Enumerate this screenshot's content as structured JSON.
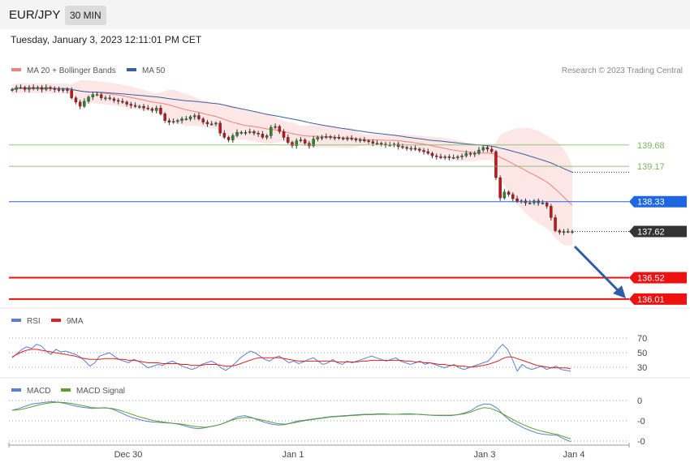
{
  "header": {
    "pair": "EUR/JPY",
    "timeframe": "30 MIN",
    "datetime": "Tuesday, January 3, 2023 12:11:01 PM CET"
  },
  "colors": {
    "ma20": "#f08080",
    "ma50": "#3a5f9e",
    "band": "#fbdede",
    "bull": "#2a8a2a",
    "bear": "#cc1111",
    "resistance": "#7ab55c",
    "pivot": "#1f66e0",
    "current": "#333333",
    "support": "#ee1111",
    "rsi": "#5a7fd8",
    "rsi_ma": "#dd2222",
    "macd": "#5a7fd8",
    "macd_signal": "#5aa02c",
    "arrow": "#2f5fa3"
  },
  "chart_data": [
    {
      "type": "candlestick",
      "legend": [
        {
          "label": "MA 20 + Bollinger Bands"
        },
        {
          "label": "MA 50"
        }
      ],
      "credit": "Research © 2023 Trading Central",
      "ylim": [
        135.95,
        141.2
      ],
      "x_ticks": [
        "Dec 30",
        "Jan 1",
        "Jan 3",
        "Jan 4"
      ],
      "close": [
        141.0,
        141.05,
        141.05,
        141.0,
        141.05,
        141.02,
        141.05,
        141.0,
        141.05,
        141.02,
        141.0,
        140.98,
        141.0,
        140.98,
        140.8,
        140.7,
        140.6,
        140.72,
        140.82,
        140.88,
        140.88,
        140.8,
        140.8,
        140.78,
        140.74,
        140.72,
        140.7,
        140.65,
        140.62,
        140.6,
        140.6,
        140.56,
        140.54,
        140.5,
        140.56,
        140.42,
        140.26,
        140.22,
        140.24,
        140.26,
        140.3,
        140.3,
        140.35,
        140.38,
        140.3,
        140.22,
        140.18,
        140.18,
        140.2,
        139.96,
        139.86,
        139.8,
        139.9,
        139.98,
        139.98,
        139.98,
        140.0,
        139.96,
        139.94,
        139.86,
        139.9,
        140.1,
        140.12,
        140.0,
        139.86,
        139.74,
        139.66,
        139.78,
        139.8,
        139.72,
        139.66,
        139.82,
        139.86,
        139.86,
        139.88,
        139.86,
        139.86,
        139.84,
        139.84,
        139.84,
        139.82,
        139.8,
        139.8,
        139.78,
        139.76,
        139.72,
        139.72,
        139.7,
        139.68,
        139.68,
        139.7,
        139.64,
        139.62,
        139.6,
        139.6,
        139.58,
        139.55,
        139.52,
        139.48,
        139.42,
        139.4,
        139.38,
        139.4,
        139.38,
        139.38,
        139.4,
        139.42,
        139.48,
        139.46,
        139.48,
        139.56,
        139.62,
        139.58,
        139.52,
        138.9,
        138.42,
        138.56,
        138.5,
        138.4,
        138.34,
        138.35,
        138.3,
        138.3,
        138.35,
        138.3,
        138.3,
        138.22,
        137.95,
        137.64,
        137.6,
        137.62,
        137.62,
        137.62
      ],
      "levels": [
        {
          "label": "139.68",
          "value": 139.68,
          "kind": "resistance"
        },
        {
          "label": "139.17",
          "value": 139.17,
          "kind": "resistance"
        },
        {
          "label": "138.33",
          "value": 138.33,
          "kind": "pivot"
        },
        {
          "label": "137.62",
          "value": 137.62,
          "kind": "current"
        },
        {
          "label": "136.52",
          "value": 136.52,
          "kind": "support"
        },
        {
          "label": "136.01",
          "value": 136.01,
          "kind": "support"
        }
      ]
    },
    {
      "type": "line",
      "legend": [
        {
          "label": "RSI"
        },
        {
          "label": "9MA"
        }
      ],
      "y_ticks": [
        "70",
        "50",
        "30"
      ],
      "ylim": [
        20,
        80
      ],
      "series": [
        {
          "name": "RSI",
          "values": [
            42,
            47,
            52,
            55,
            53,
            58,
            56,
            50,
            46,
            52,
            49,
            50,
            48,
            46,
            43,
            38,
            32,
            36,
            44,
            46,
            48,
            44,
            40,
            38,
            36,
            40,
            38,
            34,
            30,
            32,
            34,
            33,
            36,
            38,
            35,
            32,
            30,
            28,
            30,
            34,
            36,
            38,
            35,
            30,
            27,
            31,
            36,
            42,
            46,
            50,
            48,
            44,
            40,
            38,
            42,
            44,
            40,
            36,
            38,
            35,
            37,
            40,
            42,
            38,
            34,
            36,
            40,
            36,
            34,
            38,
            36,
            38,
            40,
            42,
            44,
            42,
            40,
            38,
            40,
            42,
            38,
            36,
            34,
            36,
            38,
            34,
            36,
            34,
            32,
            30,
            32,
            34,
            30,
            28,
            30,
            32,
            34,
            36,
            38,
            44,
            52,
            58,
            52,
            40,
            26,
            34,
            30,
            28,
            30,
            32,
            28,
            30,
            32,
            28,
            27,
            26
          ]
        },
        {
          "name": "9MA",
          "values": [
            43,
            46,
            49,
            51,
            52,
            52,
            51,
            50,
            49,
            48,
            47,
            46,
            45,
            44,
            42,
            41,
            40,
            40,
            40,
            41,
            41,
            41,
            40,
            40,
            39,
            39,
            38,
            37,
            36,
            36,
            36,
            35,
            35,
            35,
            35,
            34,
            34,
            33,
            33,
            33,
            34,
            34,
            34,
            33,
            32,
            32,
            33,
            35,
            37,
            39,
            41,
            42,
            42,
            42,
            42,
            42,
            41,
            40,
            39,
            38,
            38,
            38,
            38,
            38,
            38,
            38,
            38,
            37,
            37,
            37,
            37,
            37,
            38,
            38,
            39,
            39,
            39,
            39,
            39,
            39,
            39,
            38,
            38,
            37,
            37,
            36,
            36,
            35,
            34,
            34,
            33,
            33,
            32,
            32,
            31,
            31,
            32,
            33,
            34,
            36,
            38,
            41,
            43,
            43,
            41,
            39,
            37,
            35,
            33,
            32,
            31,
            30,
            30,
            30,
            30,
            29
          ]
        }
      ]
    },
    {
      "type": "line",
      "legend": [
        {
          "label": "MACD"
        },
        {
          "label": "MACD Signal"
        }
      ],
      "y_ticks": [
        "0",
        "-0",
        "-0"
      ],
      "ylim": [
        -1.0,
        0.05
      ],
      "series": [
        {
          "name": "MACD",
          "values": [
            -0.24,
            -0.2,
            -0.15,
            -0.1,
            -0.08,
            -0.06,
            -0.05,
            -0.06,
            -0.09,
            -0.13,
            -0.16,
            -0.18,
            -0.2,
            -0.19,
            -0.18,
            -0.21,
            -0.27,
            -0.34,
            -0.4,
            -0.44,
            -0.48,
            -0.5,
            -0.51,
            -0.52,
            -0.53,
            -0.55,
            -0.59,
            -0.63,
            -0.65,
            -0.63,
            -0.6,
            -0.57,
            -0.52,
            -0.45,
            -0.38,
            -0.36,
            -0.4,
            -0.46,
            -0.51,
            -0.55,
            -0.57,
            -0.56,
            -0.52,
            -0.48,
            -0.46,
            -0.44,
            -0.42,
            -0.4,
            -0.38,
            -0.37,
            -0.36,
            -0.35,
            -0.34,
            -0.33,
            -0.33,
            -0.32,
            -0.32,
            -0.33,
            -0.33,
            -0.32,
            -0.32,
            -0.33,
            -0.34,
            -0.35,
            -0.36,
            -0.36,
            -0.36,
            -0.34,
            -0.3,
            -0.25,
            -0.15,
            -0.1,
            -0.11,
            -0.2,
            -0.36,
            -0.48,
            -0.56,
            -0.64,
            -0.7,
            -0.75,
            -0.78,
            -0.79,
            -0.8,
            -0.88,
            -0.94
          ]
        },
        {
          "name": "MACD Signal",
          "values": [
            -0.24,
            -0.23,
            -0.2,
            -0.16,
            -0.12,
            -0.09,
            -0.07,
            -0.06,
            -0.07,
            -0.09,
            -0.12,
            -0.15,
            -0.18,
            -0.19,
            -0.19,
            -0.2,
            -0.23,
            -0.28,
            -0.33,
            -0.38,
            -0.42,
            -0.46,
            -0.49,
            -0.51,
            -0.53,
            -0.54,
            -0.56,
            -0.59,
            -0.61,
            -0.62,
            -0.6,
            -0.57,
            -0.52,
            -0.46,
            -0.42,
            -0.4,
            -0.41,
            -0.44,
            -0.47,
            -0.51,
            -0.54,
            -0.55,
            -0.53,
            -0.5,
            -0.47,
            -0.45,
            -0.43,
            -0.41,
            -0.39,
            -0.38,
            -0.37,
            -0.36,
            -0.35,
            -0.34,
            -0.34,
            -0.33,
            -0.33,
            -0.33,
            -0.33,
            -0.33,
            -0.33,
            -0.33,
            -0.34,
            -0.35,
            -0.35,
            -0.35,
            -0.35,
            -0.34,
            -0.32,
            -0.28,
            -0.22,
            -0.18,
            -0.2,
            -0.26,
            -0.34,
            -0.42,
            -0.5,
            -0.57,
            -0.63,
            -0.68,
            -0.72,
            -0.75,
            -0.78,
            -0.83,
            -0.88
          ]
        }
      ]
    }
  ]
}
